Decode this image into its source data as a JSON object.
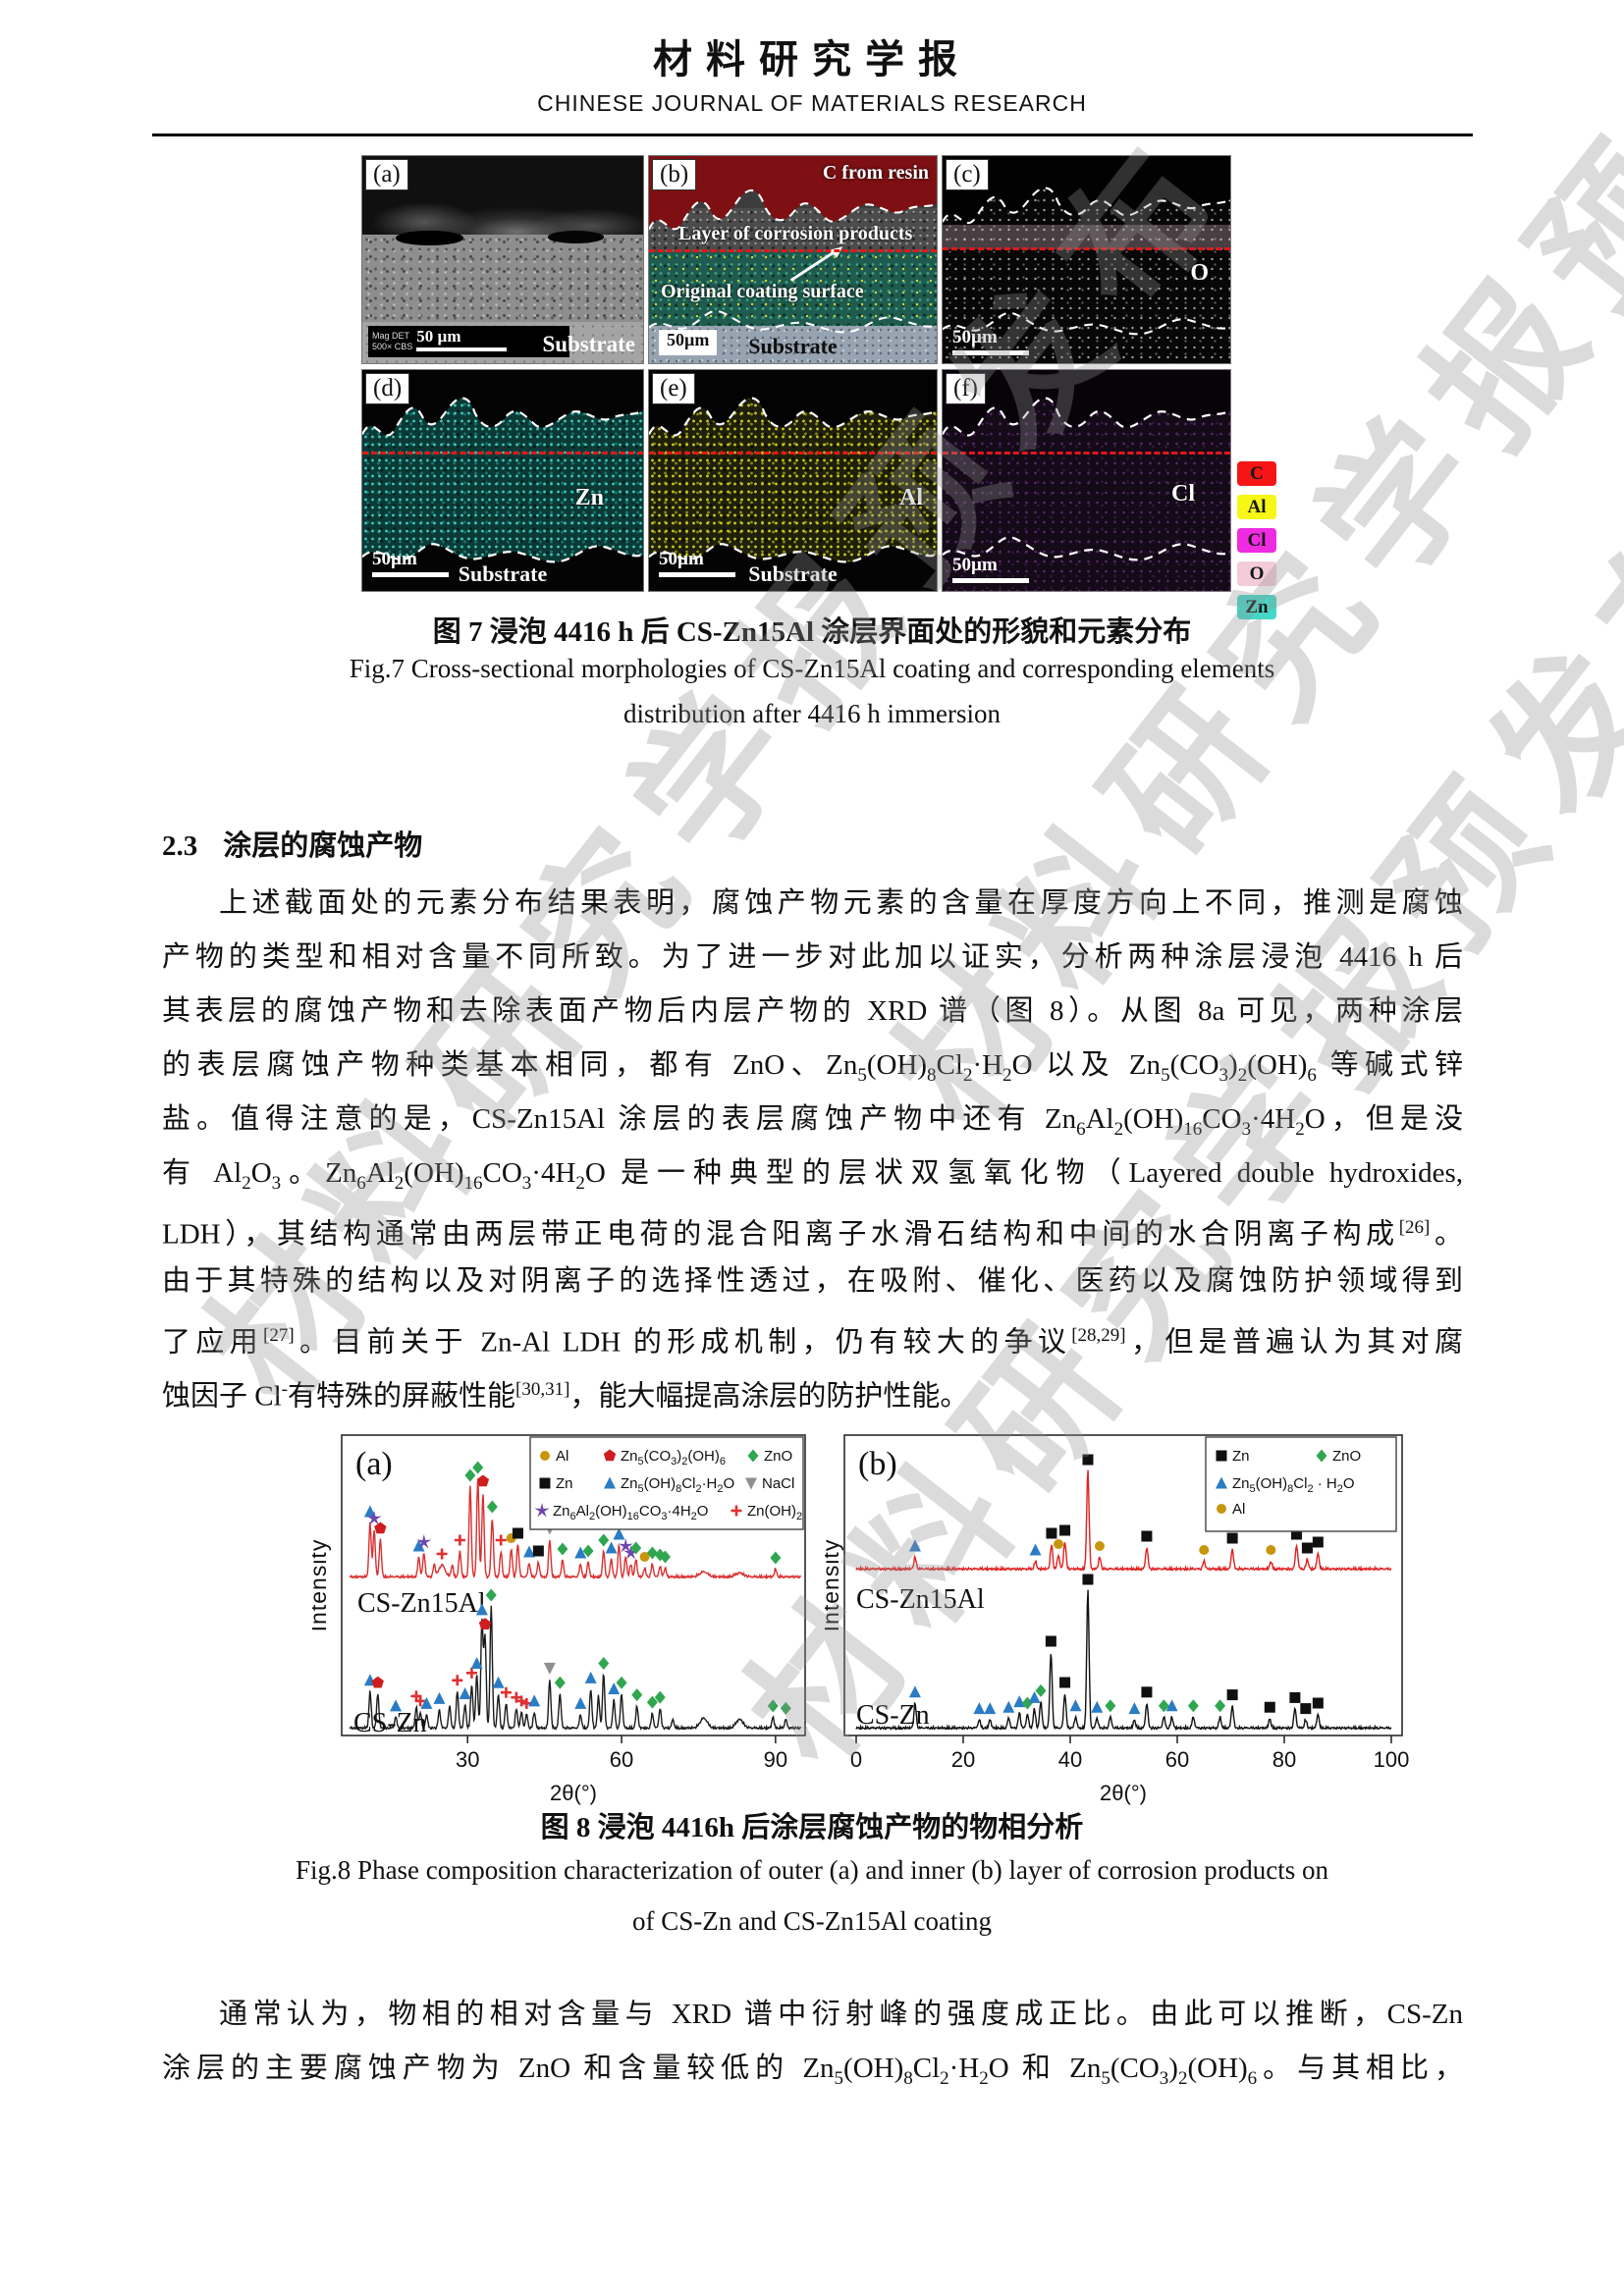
{
  "header": {
    "title_cn": "材料研究学报",
    "title_en": "CHINESE JOURNAL OF MATERIALS RESEARCH"
  },
  "watermark": {
    "text": "材料研究学报预发布"
  },
  "fig7": {
    "panels": {
      "a": {
        "tag": "(a)",
        "meta1": "Mag  DET",
        "meta2": "500×  CBS",
        "scale": "50 µm",
        "substrate": "Substrate"
      },
      "b": {
        "tag": "(b)",
        "resin": "C from resin",
        "corrosion": "Layer of corrosion products",
        "coating": "Original coating surface",
        "scale": "50µm",
        "substrate": "Substrate"
      },
      "c": {
        "tag": "(c)",
        "element": "O",
        "scale": "50µm"
      },
      "d": {
        "tag": "(d)",
        "element": "Zn",
        "scale": "50µm",
        "substrate": "Substrate"
      },
      "e": {
        "tag": "(e)",
        "element": "Al",
        "scale": "50µm",
        "substrate": "Substrate"
      },
      "f": {
        "tag": "(f)",
        "element": "Cl",
        "scale": "50µm"
      }
    },
    "legend": [
      {
        "label": "C",
        "color": "#f51515"
      },
      {
        "label": "Al",
        "color": "#f7f716"
      },
      {
        "label": "Cl",
        "color": "#ee2be0"
      },
      {
        "label": "O",
        "color": "#f3ccd8"
      },
      {
        "label": "Zn",
        "color": "#45d8c8"
      }
    ],
    "caption_cn": "图 7 浸泡 4416 h 后 CS-Zn15Al 涂层界面处的形貌和元素分布",
    "caption_en1": "Fig.7 Cross-sectional morphologies of CS-Zn15Al coating and corresponding elements",
    "caption_en2": "distribution after 4416 h immersion"
  },
  "section": {
    "number": "2.3",
    "title": "涂层的腐蚀产物"
  },
  "paragraphs": [
    {
      "lines": [
        {
          "html": "上述截面处的元素分布结果表明，腐蚀产物元素的含量在厚度方向上不同，推测是腐蚀",
          "justify": true,
          "indent": true
        },
        {
          "html": "产物的类型和相对含量不同所致。为了进一步对此加以证实，分析两种涂层浸泡 4416 h 后",
          "justify": true,
          "indent": false
        },
        {
          "html": "其表层的腐蚀产物和去除表面产物后内层产物的 XRD 谱（图 8）。从图 8a 可见，两种涂层",
          "justify": true,
          "indent": false
        },
        {
          "html": "的表层腐蚀产物种类基本相同，都有 ZnO、Zn<sub>5</sub>(OH)<sub>8</sub>Cl<sub>2</sub>·H<sub>2</sub>O 以及 Zn<sub>5</sub>(CO<sub>3</sub>)<sub>2</sub>(OH)<sub>6</sub> 等碱式锌",
          "justify": true,
          "indent": false
        },
        {
          "html": "盐。值得注意的是，CS-Zn15Al 涂层的表层腐蚀产物中还有 Zn<sub>6</sub>Al<sub>2</sub>(OH)<sub>16</sub>CO<sub>3</sub>·4H<sub>2</sub>O，但是没",
          "justify": true,
          "indent": false
        },
        {
          "html": "有 Al<sub>2</sub>O<sub>3</sub>。Zn<sub>6</sub>Al<sub>2</sub>(OH)<sub>16</sub>CO<sub>3</sub>·4H<sub>2</sub>O 是一种典型的层状双氢氧化物（Layered double hydroxides,",
          "justify": true,
          "indent": false
        },
        {
          "html": "LDH），其结构通常由两层带正电荷的混合阳离子水滑石结构和中间的水合阴离子构成<sup>[26]</sup>。",
          "justify": true,
          "indent": false
        },
        {
          "html": "由于其特殊的结构以及对阴离子的选择性透过，在吸附、催化、医药以及腐蚀防护领域得到",
          "justify": true,
          "indent": false
        },
        {
          "html": "了应用<sup>[27]</sup>。目前关于 Zn-Al LDH 的形成机制，仍有较大的争议<sup>[28,29]</sup>，但是普遍认为其对腐",
          "justify": true,
          "indent": false
        },
        {
          "html": "蚀因子 Cl<sup>-</sup>有特殊的屏蔽性能<sup>[30,31]</sup>，能大幅提高涂层的防护性能。",
          "justify": false,
          "indent": false
        }
      ]
    },
    {
      "lines": [
        {
          "html": "通常认为，物相的相对含量与 XRD 谱中衍射峰的强度成正比。由此可以推断，CS-Zn",
          "justify": true,
          "indent": true
        },
        {
          "html": "涂层的主要腐蚀产物为 ZnO 和含量较低的 Zn<sub>5</sub>(OH)<sub>8</sub>Cl<sub>2</sub>·H<sub>2</sub>O 和 Zn<sub>5</sub>(CO<sub>3</sub>)<sub>2</sub>(OH)<sub>6</sub>。与其相比，",
          "justify": true,
          "indent": false
        }
      ]
    }
  ],
  "chart_data": [
    {
      "type": "line",
      "subtype": "xrd",
      "panel_label": "(a)",
      "xlabel": "2θ(°)",
      "ylabel": "Intensity",
      "x_range": [
        7,
        95
      ],
      "x_ticks": [
        30,
        60,
        90
      ],
      "marker_key": {
        "c": "Al",
        "p": "Zn5(CO3)2(OH)6",
        "d": "ZnO",
        "s": "Zn",
        "t": "Zn5(OH)8Cl2·H2O",
        "v": "NaCl",
        "*": "Zn6Al2(OH)16CO3·4H2O",
        "+": "Zn(OH)2"
      },
      "marker_colors": {
        "c": "#c8960c",
        "p": "#cf1d1d",
        "d": "#2fa64f",
        "s": "#101010",
        "t": "#2a7cc4",
        "v": "#8f8f8f",
        "*": "#6e46ad",
        "+": "#e03030"
      },
      "legend_box": [
        222,
        14,
        278,
        94
      ],
      "legend": [
        {
          "symbol": "c",
          "label": "Al",
          "pos": [
            237,
            38
          ]
        },
        {
          "symbol": "p",
          "label": "Zn_5(CO_3)_2(OH)_6",
          "pos": [
            303,
            38
          ]
        },
        {
          "symbol": "d",
          "label": "ZnO",
          "pos": [
            449,
            38
          ]
        },
        {
          "symbol": "s",
          "label": "Zn",
          "pos": [
            237,
            66
          ]
        },
        {
          "symbol": "t",
          "label": "Zn_5(OH)_8Cl_2·H_2O",
          "pos": [
            303,
            66
          ]
        },
        {
          "symbol": "v",
          "label": "NaCl",
          "pos": [
            447,
            66
          ]
        },
        {
          "symbol": "*",
          "label": "Zn_6Al_2(OH)_16CO_3·4H_2O",
          "pos": [
            234,
            94
          ]
        },
        {
          "symbol": "+",
          "label": "Zn(OH)_2",
          "pos": [
            432,
            94
          ]
        }
      ],
      "series": [
        {
          "name": "CS-Zn15Al",
          "color": "#d93030",
          "peaks": [
            [
              11,
              55,
              "t"
            ],
            [
              11.8,
              48,
              "*"
            ],
            [
              13,
              38,
              "p"
            ],
            [
              20.5,
              20,
              "t"
            ],
            [
              21.5,
              24,
              "*"
            ],
            [
              23.5,
              12,
              null
            ],
            [
              25,
              12,
              "+",
              0.6
            ],
            [
              27,
              12,
              null
            ],
            [
              28.5,
              26,
              "+"
            ],
            [
              30.5,
              92,
              "d"
            ],
            [
              32,
              100,
              "d"
            ],
            [
              33,
              86,
              "p"
            ],
            [
              34.8,
              60,
              "d"
            ],
            [
              36.5,
              26,
              "+"
            ],
            [
              38.5,
              28,
              "c"
            ],
            [
              39.8,
              33,
              "s"
            ],
            [
              42,
              14,
              "t"
            ],
            [
              43.8,
              15,
              "s"
            ],
            [
              46,
              38,
              "v"
            ],
            [
              48.5,
              17,
              "d"
            ],
            [
              52,
              13,
              "t"
            ],
            [
              53.5,
              15,
              "d"
            ],
            [
              56.5,
              26,
              "d"
            ],
            [
              58,
              18,
              "t"
            ],
            [
              59.5,
              32,
              "t"
            ],
            [
              60.8,
              20,
              "*"
            ],
            [
              61.8,
              13,
              "*"
            ],
            [
              62.8,
              18,
              "d"
            ],
            [
              64.5,
              9,
              "c"
            ],
            [
              66,
              13,
              "d"
            ],
            [
              67.5,
              11,
              "d"
            ],
            [
              68.5,
              9,
              "d"
            ],
            [
              76,
              5,
              null,
              0.8
            ],
            [
              83,
              4,
              null,
              0.8
            ],
            [
              90,
              8,
              "d"
            ]
          ]
        },
        {
          "name": "CS-Zn",
          "color": "#1c1c1c",
          "peaks": [
            [
              11,
              30,
              "t"
            ],
            [
              12.5,
              28,
              "p"
            ],
            [
              16,
              9,
              "t"
            ],
            [
              20,
              17,
              "+"
            ],
            [
              20.8,
              13,
              "+"
            ],
            [
              22,
              11,
              "t"
            ],
            [
              24.5,
              15,
              "t"
            ],
            [
              26.5,
              18,
              null
            ],
            [
              28,
              30,
              "+"
            ],
            [
              29.5,
              19,
              "t"
            ],
            [
              30.8,
              36,
              "+"
            ],
            [
              31.8,
              44,
              "t"
            ],
            [
              32.8,
              88,
              "t"
            ],
            [
              33.4,
              76,
              "p"
            ],
            [
              34.6,
              100,
              "d"
            ],
            [
              36,
              28,
              "t"
            ],
            [
              37.5,
              20,
              "+"
            ],
            [
              39.5,
              16,
              "+"
            ],
            [
              40.5,
              13,
              "+"
            ],
            [
              41.5,
              11,
              "+"
            ],
            [
              43,
              13,
              "t"
            ],
            [
              46,
              40,
              "v"
            ],
            [
              48,
              28,
              "d"
            ],
            [
              52,
              11,
              "t"
            ],
            [
              54,
              32,
              "t"
            ],
            [
              55.5,
              26,
              null
            ],
            [
              56.5,
              44,
              "d"
            ],
            [
              58.5,
              23,
              "t"
            ],
            [
              60,
              28,
              "d"
            ],
            [
              63,
              18,
              "d"
            ],
            [
              66,
              12,
              "d"
            ],
            [
              67.5,
              16,
              "d"
            ],
            [
              70,
              7,
              null
            ],
            [
              76,
              8,
              null,
              0.7
            ],
            [
              83,
              7,
              null,
              0.7
            ],
            [
              89.5,
              9,
              "d"
            ],
            [
              92,
              7,
              "d"
            ]
          ]
        }
      ]
    },
    {
      "type": "line",
      "subtype": "xrd",
      "panel_label": "(b)",
      "xlabel": "2θ(°)",
      "ylabel": "Intensity",
      "x_range": [
        0,
        100
      ],
      "x_ticks": [
        0,
        20,
        40,
        60,
        80,
        100
      ],
      "marker_key": {
        "s": "Zn",
        "d": "ZnO",
        "t": "Zn5(OH)8Cl2·H2O",
        "c": "Al"
      },
      "marker_colors": {
        "c": "#c8960c",
        "d": "#2fa64f",
        "s": "#101010",
        "t": "#2a7cc4"
      },
      "legend_box": [
        388,
        14,
        194,
        96
      ],
      "legend": [
        {
          "symbol": "s",
          "label": "Zn",
          "pos": [
            404,
            38
          ]
        },
        {
          "symbol": "d",
          "label": "ZnO",
          "pos": [
            506,
            38
          ]
        },
        {
          "symbol": "t",
          "label": "Zn_5(OH)_8Cl_2 · H_2O",
          "pos": [
            404,
            66
          ]
        },
        {
          "symbol": "c",
          "label": "Al",
          "pos": [
            404,
            92
          ]
        }
      ],
      "series": [
        {
          "name": "CS-Zn15Al",
          "color": "#e02020",
          "peaks": [
            [
              11,
              12,
              "t"
            ],
            [
              33.5,
              8,
              "t"
            ],
            [
              36.5,
              25,
              "s"
            ],
            [
              37.8,
              14,
              "c"
            ],
            [
              39,
              28,
              "s"
            ],
            [
              43.3,
              100,
              "s"
            ],
            [
              45.5,
              12,
              "c"
            ],
            [
              54.3,
              22,
              "s"
            ],
            [
              65,
              8,
              "c"
            ],
            [
              70.3,
              20,
              "s"
            ],
            [
              77.5,
              8,
              "c"
            ],
            [
              82.3,
              24,
              "s"
            ],
            [
              84.3,
              10,
              "s"
            ],
            [
              86.3,
              16,
              "s"
            ]
          ]
        },
        {
          "name": "CS-Zn",
          "color": "#111111",
          "peaks": [
            [
              11,
              18,
              "t"
            ],
            [
              23,
              6,
              "t"
            ],
            [
              25,
              6,
              "t"
            ],
            [
              28.5,
              7,
              "t"
            ],
            [
              30.5,
              11,
              "t"
            ],
            [
              32,
              10,
              "d"
            ],
            [
              33.3,
              14,
              "t"
            ],
            [
              34.5,
              19,
              "d"
            ],
            [
              36.4,
              55,
              "s"
            ],
            [
              39,
              25,
              "s"
            ],
            [
              41,
              8,
              "t"
            ],
            [
              43.3,
              100,
              "s"
            ],
            [
              45,
              7,
              "t"
            ],
            [
              47.5,
              8,
              "d"
            ],
            [
              52,
              6,
              "t"
            ],
            [
              54.3,
              18,
              "s"
            ],
            [
              57.5,
              8,
              "d"
            ],
            [
              59,
              8,
              "t"
            ],
            [
              63,
              8,
              "d"
            ],
            [
              68,
              8,
              "d"
            ],
            [
              70.3,
              16,
              "s"
            ],
            [
              77.3,
              7,
              "s"
            ],
            [
              82,
              14,
              "s"
            ],
            [
              84,
              6,
              "s"
            ],
            [
              86.3,
              10,
              "s"
            ]
          ]
        }
      ]
    }
  ],
  "fig8": {
    "caption_cn": "图 8 浸泡 4416h 后涂层腐蚀产物的物相分析",
    "caption_en1": "Fig.8 Phase composition characterization of outer (a) and inner (b) layer of corrosion products on",
    "caption_en2": "of CS-Zn and CS-Zn15Al coating"
  }
}
